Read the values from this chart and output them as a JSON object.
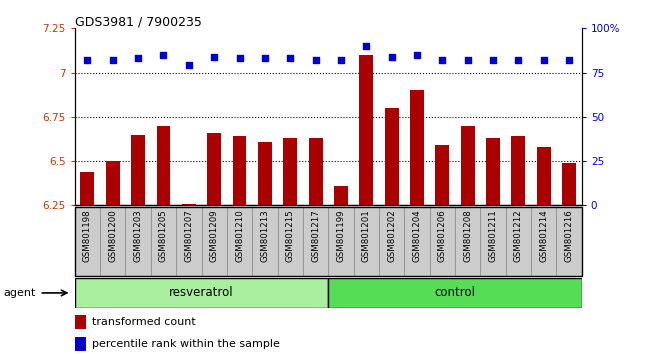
{
  "title": "GDS3981 / 7900235",
  "samples": [
    "GSM801198",
    "GSM801200",
    "GSM801203",
    "GSM801205",
    "GSM801207",
    "GSM801209",
    "GSM801210",
    "GSM801213",
    "GSM801215",
    "GSM801217",
    "GSM801199",
    "GSM801201",
    "GSM801202",
    "GSM801204",
    "GSM801206",
    "GSM801208",
    "GSM801211",
    "GSM801212",
    "GSM801214",
    "GSM801216"
  ],
  "bar_values": [
    6.44,
    6.5,
    6.65,
    6.7,
    6.26,
    6.66,
    6.64,
    6.61,
    6.63,
    6.63,
    6.36,
    7.1,
    6.8,
    6.9,
    6.59,
    6.7,
    6.63,
    6.64,
    6.58,
    6.49
  ],
  "dot_values": [
    82,
    82,
    83,
    85,
    79,
    84,
    83,
    83,
    83,
    82,
    82,
    90,
    84,
    85,
    82,
    82,
    82,
    82,
    82,
    82
  ],
  "resveratrol_count": 10,
  "control_count": 10,
  "ylim_left": [
    6.25,
    7.25
  ],
  "ylim_right": [
    0,
    100
  ],
  "yticks_left": [
    6.25,
    6.5,
    6.75,
    7.0,
    7.25
  ],
  "ytick_labels_left": [
    "6.25",
    "6.5",
    "6.75",
    "7",
    "7.25"
  ],
  "yticks_right": [
    0,
    25,
    50,
    75,
    100
  ],
  "ytick_labels_right": [
    "0",
    "25",
    "50",
    "75",
    "100%"
  ],
  "bar_color": "#aa0000",
  "dot_color": "#0000cc",
  "resveratrol_label": "resveratrol",
  "control_label": "control",
  "agent_label": "agent",
  "legend_bar": "transformed count",
  "legend_dot": "percentile rank within the sample",
  "grid_values": [
    6.5,
    6.75,
    7.0
  ],
  "bg_plot": "#ffffff",
  "bg_label_sample": "#cccccc",
  "bg_label_resv": "#aaeea0",
  "bg_label_ctrl": "#55dd55",
  "tick_color_left": "#cc3300",
  "tick_color_right": "#0000cc"
}
